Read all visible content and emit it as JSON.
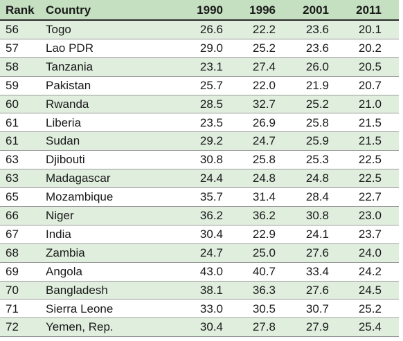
{
  "table": {
    "headers": {
      "rank": "Rank",
      "country": "Country",
      "y1990": "1990",
      "y1996": "1996",
      "y2001": "2001",
      "y2011": "2011"
    },
    "rows": [
      {
        "rank": "56",
        "country": "Togo",
        "y1990": "26.6",
        "y1996": "22.2",
        "y2001": "23.6",
        "y2011": "20.1"
      },
      {
        "rank": "57",
        "country": "Lao PDR",
        "y1990": "29.0",
        "y1996": "25.2",
        "y2001": "23.6",
        "y2011": "20.2"
      },
      {
        "rank": "58",
        "country": "Tanzania",
        "y1990": "23.1",
        "y1996": "27.4",
        "y2001": "26.0",
        "y2011": "20.5"
      },
      {
        "rank": "59",
        "country": "Pakistan",
        "y1990": "25.7",
        "y1996": "22.0",
        "y2001": "21.9",
        "y2011": "20.7"
      },
      {
        "rank": "60",
        "country": "Rwanda",
        "y1990": "28.5",
        "y1996": "32.7",
        "y2001": "25.2",
        "y2011": "21.0"
      },
      {
        "rank": "61",
        "country": "Liberia",
        "y1990": "23.5",
        "y1996": "26.9",
        "y2001": "25.8",
        "y2011": "21.5"
      },
      {
        "rank": "61",
        "country": "Sudan",
        "y1990": "29.2",
        "y1996": "24.7",
        "y2001": "25.9",
        "y2011": "21.5"
      },
      {
        "rank": "63",
        "country": "Djibouti",
        "y1990": "30.8",
        "y1996": "25.8",
        "y2001": "25.3",
        "y2011": "22.5"
      },
      {
        "rank": "63",
        "country": "Madagascar",
        "y1990": "24.4",
        "y1996": "24.8",
        "y2001": "24.8",
        "y2011": "22.5"
      },
      {
        "rank": "65",
        "country": "Mozambique",
        "y1990": "35.7",
        "y1996": "31.4",
        "y2001": "28.4",
        "y2011": "22.7"
      },
      {
        "rank": "66",
        "country": "Niger",
        "y1990": "36.2",
        "y1996": "36.2",
        "y2001": "30.8",
        "y2011": "23.0"
      },
      {
        "rank": "67",
        "country": "India",
        "y1990": "30.4",
        "y1996": "22.9",
        "y2001": "24.1",
        "y2011": "23.7"
      },
      {
        "rank": "68",
        "country": "Zambia",
        "y1990": "24.7",
        "y1996": "25.0",
        "y2001": "27.6",
        "y2011": "24.0"
      },
      {
        "rank": "69",
        "country": "Angola",
        "y1990": "43.0",
        "y1996": "40.7",
        "y2001": "33.4",
        "y2011": "24.2"
      },
      {
        "rank": "70",
        "country": "Bangladesh",
        "y1990": "38.1",
        "y1996": "36.3",
        "y2001": "27.6",
        "y2011": "24.5"
      },
      {
        "rank": "71",
        "country": "Sierra Leone",
        "y1990": "33.0",
        "y1996": "30.5",
        "y2001": "30.7",
        "y2011": "25.2"
      },
      {
        "rank": "72",
        "country": "Yemen, Rep.",
        "y1990": "30.4",
        "y1996": "27.8",
        "y2001": "27.9",
        "y2011": "25.4"
      }
    ]
  },
  "colors": {
    "header_bg": "#c4e0c0",
    "shaded_row_bg": "#dfeedd",
    "plain_row_bg": "#ffffff"
  }
}
